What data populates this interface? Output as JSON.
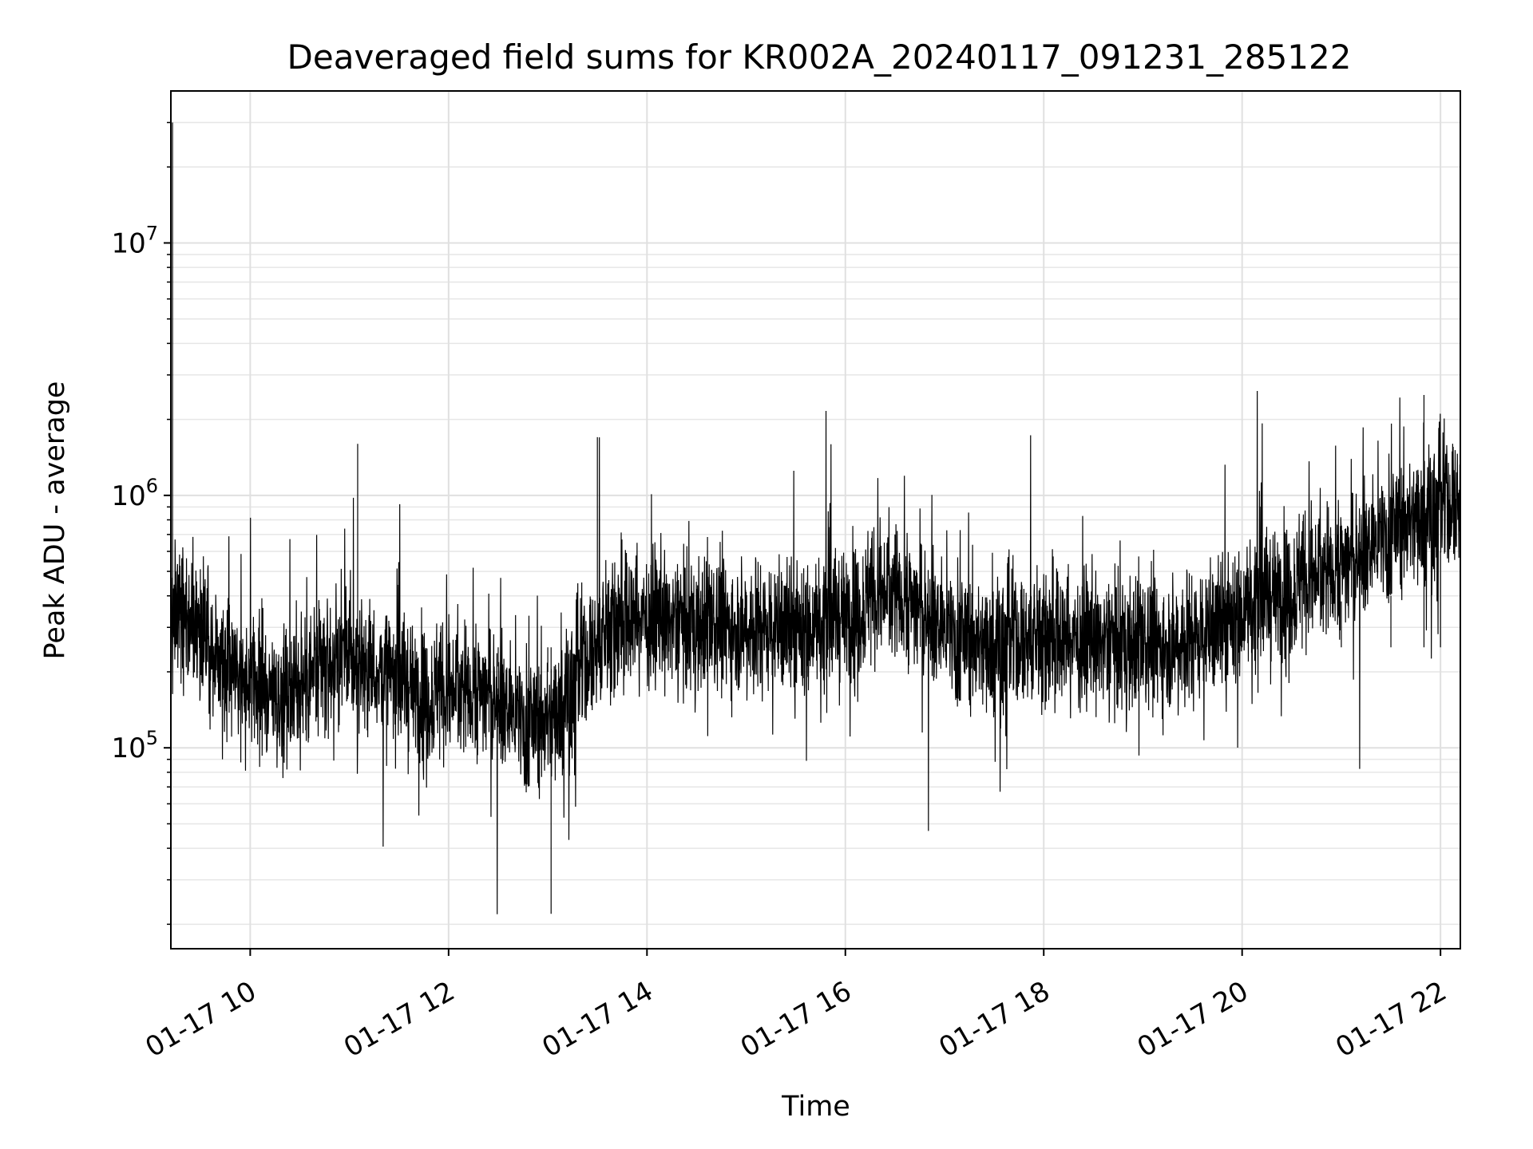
{
  "chart_data": {
    "type": "line",
    "title": "Deaveraged field sums for KR002A_20240117_091231_285122",
    "xlabel": "Time",
    "ylabel": "Peak ADU - average",
    "x_axis": {
      "type": "time",
      "start": "2024-01-17T09:12",
      "end": "2024-01-17T22:12"
    },
    "y_axis": {
      "type": "log",
      "ylim": [
        16000,
        40000000
      ]
    },
    "x_ticks": [
      {
        "value": "2024-01-17T10:00",
        "label": "01-17 10"
      },
      {
        "value": "2024-01-17T12:00",
        "label": "01-17 12"
      },
      {
        "value": "2024-01-17T14:00",
        "label": "01-17 14"
      },
      {
        "value": "2024-01-17T16:00",
        "label": "01-17 16"
      },
      {
        "value": "2024-01-17T18:00",
        "label": "01-17 18"
      },
      {
        "value": "2024-01-17T20:00",
        "label": "01-17 20"
      },
      {
        "value": "2024-01-17T22:00",
        "label": "01-17 22"
      }
    ],
    "y_ticks": [
      {
        "value": 100000,
        "base": "10",
        "exp": "5"
      },
      {
        "value": 1000000,
        "base": "10",
        "exp": "6"
      },
      {
        "value": 10000000,
        "base": "10",
        "exp": "7"
      }
    ],
    "grid": true,
    "color": "#000000",
    "series": [
      {
        "x": [
          "2024-01-17T09:12",
          "2024-01-17T09:13",
          "2024-01-17T09:15",
          "2024-01-17T09:20",
          "2024-01-17T09:30",
          "2024-01-17T09:45",
          "2024-01-17T10:00",
          "2024-01-17T10:20",
          "2024-01-17T10:40",
          "2024-01-17T11:00",
          "2024-01-17T11:05",
          "2024-01-17T11:20",
          "2024-01-17T11:30",
          "2024-01-17T11:45",
          "2024-01-17T12:00",
          "2024-01-17T12:15",
          "2024-01-17T12:30",
          "2024-01-17T13:00",
          "2024-01-17T13:02",
          "2024-01-17T13:20",
          "2024-01-17T13:30",
          "2024-01-17T13:45",
          "2024-01-17T14:00",
          "2024-01-17T14:30",
          "2024-01-17T15:00",
          "2024-01-17T15:30",
          "2024-01-17T16:00",
          "2024-01-17T16:30",
          "2024-01-17T17:00",
          "2024-01-17T17:30",
          "2024-01-17T18:00",
          "2024-01-17T18:30",
          "2024-01-17T19:00",
          "2024-01-17T19:30",
          "2024-01-17T20:00",
          "2024-01-17T20:30",
          "2024-01-17T21:00",
          "2024-01-17T21:30",
          "2024-01-17T21:50",
          "2024-01-17T22:00",
          "2024-01-17T22:12"
        ],
        "y": [
          400000,
          30000000,
          500000,
          300000,
          200000,
          150000,
          160000,
          150000,
          170000,
          180000,
          1600000,
          160000,
          150000,
          140000,
          160000,
          200000,
          210000,
          200000,
          22000,
          300000,
          1700000,
          320000,
          300000,
          300000,
          320000,
          280000,
          300000,
          700000,
          250000,
          260000,
          280000,
          260000,
          250000,
          270000,
          320000,
          360000,
          380000,
          400000,
          2500000,
          600000,
          450000
        ]
      }
    ]
  }
}
